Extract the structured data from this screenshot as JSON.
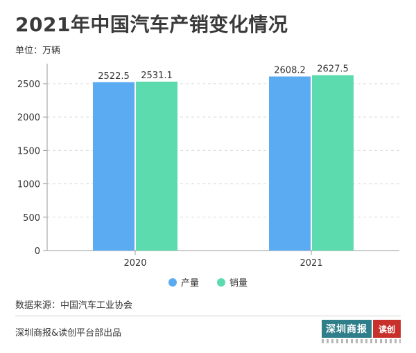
{
  "header": {
    "title": "2021年中国汽车产销变化情况",
    "unit": "单位：万辆"
  },
  "chart_data": {
    "type": "bar",
    "categories": [
      "2020",
      "2021"
    ],
    "series": [
      {
        "name": "产量",
        "values": [
          2522.5,
          2608.2
        ],
        "color": "#5aabf2"
      },
      {
        "name": "销量",
        "values": [
          2531.1,
          2627.5
        ],
        "color": "#5cdbae"
      }
    ],
    "ylim": [
      0,
      2800
    ],
    "yticks": [
      0,
      500,
      1000,
      1500,
      2000,
      2500
    ],
    "grid": true,
    "legend": "bottom"
  },
  "legend": {
    "items": [
      "产量",
      "销量"
    ]
  },
  "footer": {
    "source": "数据来源：中国汽车工业协会",
    "publisher": "深圳商报&读创平台部出品",
    "logo_main": "深圳商报",
    "logo_tag": "读创"
  }
}
